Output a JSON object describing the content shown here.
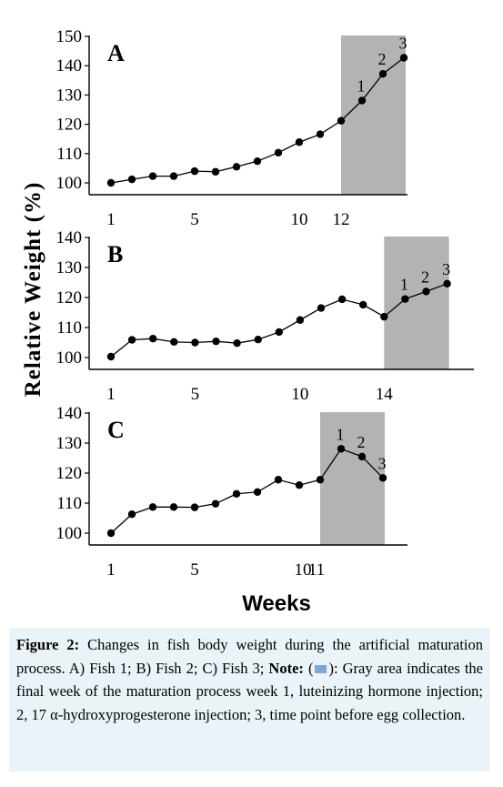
{
  "y_axis_label": "Relative Weight (%)",
  "x_axis_label": "Weeks",
  "caption": {
    "figure_label": "Figure 2:",
    "text_1": " Changes in fish body weight during the artificial maturation process. A) Fish 1; B) Fish 2; C) Fish 3; ",
    "note_label": "Note:",
    "text_2_open": " (",
    "text_2_rest": "): Gray area indicates the final week of the maturation process week 1, luteinizing hormone injection; 2, 17 α-hydroxyprogesterone injection; 3, time point before egg collection."
  },
  "chart_data": [
    {
      "type": "line",
      "panel": "A",
      "ylim": [
        95,
        150
      ],
      "yticks": [
        100,
        110,
        120,
        130,
        140,
        150
      ],
      "xlim": [
        1,
        15
      ],
      "xticks": [
        1,
        5,
        10,
        12
      ],
      "x": [
        1,
        2,
        3,
        4,
        5,
        6,
        7,
        8,
        9,
        10,
        11,
        12,
        13,
        14,
        15
      ],
      "values": [
        100,
        101.2,
        102.3,
        102.3,
        104,
        103.8,
        105.5,
        107.4,
        110.3,
        113.9,
        116.6,
        121.2,
        128.1,
        137.2,
        142.7
      ],
      "shaded_x": [
        12,
        15
      ],
      "point_labels": [
        {
          "x": 13,
          "label": "1"
        },
        {
          "x": 14,
          "label": "2"
        },
        {
          "x": 15,
          "label": "3"
        }
      ],
      "grid": false
    },
    {
      "type": "line",
      "panel": "B",
      "ylim": [
        96,
        140
      ],
      "yticks": [
        100,
        110,
        120,
        130,
        140
      ],
      "xlim": [
        1,
        18
      ],
      "xticks": [
        1,
        5,
        10,
        14
      ],
      "x": [
        1,
        2,
        3,
        4,
        5,
        6,
        7,
        8,
        9,
        10,
        11,
        12,
        13,
        14,
        15,
        16,
        17
      ],
      "values": [
        100.3,
        105.9,
        106.3,
        105.2,
        105,
        105.4,
        104.8,
        106,
        108.5,
        112.5,
        116.5,
        119.4,
        117.6,
        113.6,
        119.5,
        122,
        124.6
      ],
      "shaded_x": [
        14,
        17
      ],
      "point_labels": [
        {
          "x": 15,
          "label": "1"
        },
        {
          "x": 16,
          "label": "2"
        },
        {
          "x": 17,
          "label": "3"
        }
      ],
      "grid": false
    },
    {
      "type": "line",
      "panel": "C",
      "ylim": [
        96,
        140
      ],
      "yticks": [
        100,
        110,
        120,
        130,
        140
      ],
      "xlim": [
        1,
        15
      ],
      "xticks": [
        1,
        5,
        10,
        11
      ],
      "xtick_label_overrides": {
        "10": "10",
        "11": "11"
      },
      "x": [
        1,
        2,
        3,
        4,
        5,
        6,
        7,
        8,
        9,
        10,
        11,
        12,
        13,
        14
      ],
      "values": [
        100,
        106.3,
        108.7,
        108.7,
        108.6,
        109.8,
        113.1,
        113.7,
        117.8,
        116,
        117.8,
        128.1,
        125.5,
        118.4
      ],
      "shaded_x": [
        11,
        14
      ],
      "point_labels": [
        {
          "x": 12,
          "label": "1"
        },
        {
          "x": 13,
          "label": "2"
        },
        {
          "x": 14,
          "label": "3"
        }
      ],
      "grid": false
    }
  ]
}
